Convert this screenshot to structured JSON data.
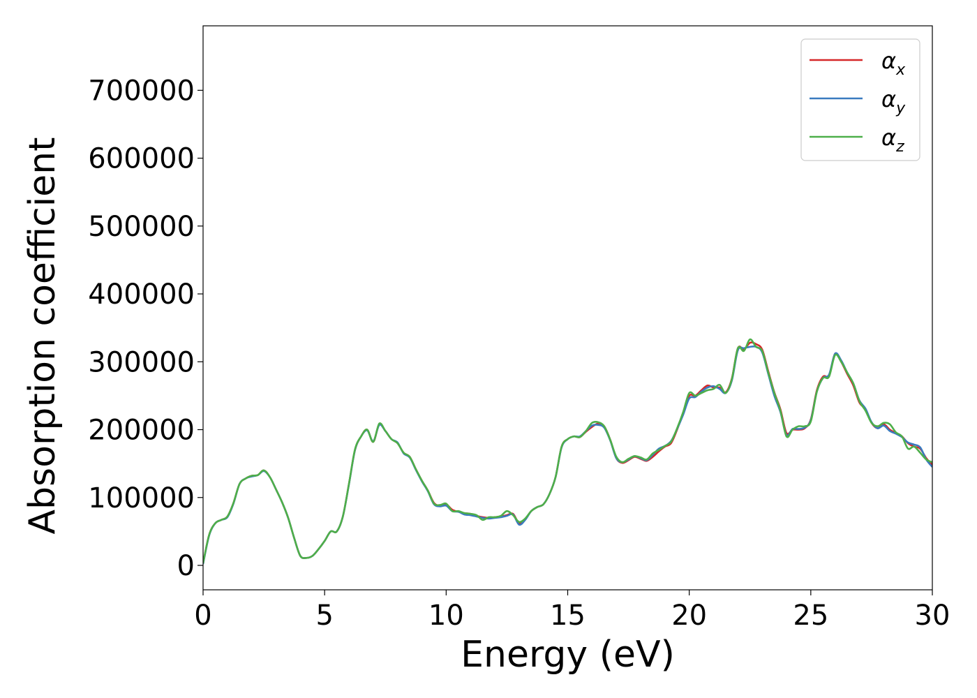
{
  "chart_data": {
    "type": "line",
    "xlabel": "Energy (eV)",
    "ylabel": "Absorption coefficient",
    "xlim": [
      0,
      30
    ],
    "ylim": [
      -36000,
      795000
    ],
    "xticks": [
      0,
      5,
      10,
      15,
      20,
      25,
      30
    ],
    "xtick_labels": [
      "0",
      "5",
      "10",
      "15",
      "20",
      "25",
      "30"
    ],
    "yticks": [
      0,
      100000,
      200000,
      300000,
      400000,
      500000,
      600000,
      700000
    ],
    "ytick_labels": [
      "0",
      "100000",
      "200000",
      "300000",
      "400000",
      "500000",
      "600000",
      "700000"
    ],
    "grid": false,
    "legend_position": "top-right",
    "x": [
      0,
      0.25,
      0.5,
      0.75,
      1,
      1.25,
      1.5,
      1.75,
      2,
      2.25,
      2.5,
      2.75,
      3,
      3.25,
      3.5,
      3.75,
      4,
      4.25,
      4.5,
      4.75,
      5,
      5.25,
      5.5,
      5.75,
      6,
      6.25,
      6.5,
      6.75,
      7,
      7.25,
      7.5,
      7.75,
      8,
      8.25,
      8.5,
      8.75,
      9,
      9.25,
      9.5,
      9.75,
      10,
      10.25,
      10.5,
      10.75,
      11,
      11.25,
      11.5,
      11.75,
      12,
      12.25,
      12.5,
      12.75,
      13,
      13.25,
      13.5,
      13.75,
      14,
      14.25,
      14.5,
      14.75,
      15,
      15.25,
      15.5,
      15.75,
      16,
      16.25,
      16.5,
      16.75,
      17,
      17.25,
      17.5,
      17.75,
      18,
      18.25,
      18.5,
      18.75,
      19,
      19.25,
      19.5,
      19.75,
      20,
      20.25,
      20.5,
      20.75,
      21,
      21.25,
      21.5,
      21.75,
      22,
      22.25,
      22.5,
      22.75,
      23,
      23.25,
      23.5,
      23.75,
      24,
      24.25,
      24.5,
      24.75,
      25,
      25.25,
      25.5,
      25.75,
      26,
      26.25,
      26.5,
      26.75,
      27,
      27.25,
      27.5,
      27.75,
      28,
      28.25,
      28.5,
      28.75,
      29,
      29.25,
      29.5,
      29.75,
      30
    ],
    "series": [
      {
        "name": "αx",
        "label_base": "α",
        "label_sub": "x",
        "color": "#d62728",
        "values": [
          3000,
          45000,
          62000,
          67000,
          72000,
          92000,
          120000,
          128000,
          132000,
          133000,
          140000,
          130000,
          112000,
          93000,
          70000,
          40000,
          14000,
          11000,
          14000,
          24000,
          36000,
          50000,
          50000,
          72000,
          120000,
          170000,
          190000,
          200000,
          182000,
          208000,
          198000,
          186000,
          180000,
          166000,
          160000,
          142000,
          125000,
          110000,
          92000,
          88000,
          90000,
          82000,
          79000,
          77000,
          76000,
          73000,
          71000,
          70000,
          71000,
          72000,
          74000,
          76000,
          62000,
          68000,
          80000,
          86000,
          90000,
          105000,
          130000,
          175000,
          186000,
          190000,
          189000,
          197000,
          204000,
          209000,
          205000,
          185000,
          158000,
          151000,
          155000,
          160000,
          157000,
          154000,
          160000,
          168000,
          175000,
          180000,
          200000,
          225000,
          250000,
          250000,
          258000,
          265000,
          262000,
          262000,
          255000,
          275000,
          320000,
          318000,
          328000,
          326000,
          318000,
          286000,
          255000,
          230000,
          195000,
          200000,
          200000,
          202000,
          215000,
          258000,
          278000,
          280000,
          312000,
          300000,
          282000,
          265000,
          240000,
          230000,
          210000,
          202000,
          208000,
          200000,
          195000,
          190000,
          180000,
          175000,
          172000,
          158000,
          148000
        ]
      },
      {
        "name": "αy",
        "label_base": "α",
        "label_sub": "y",
        "color": "#3a7bbf",
        "values": [
          2000,
          44000,
          62000,
          67000,
          71000,
          91000,
          120000,
          128000,
          131000,
          133000,
          139000,
          130000,
          112000,
          93000,
          70000,
          40000,
          14000,
          11000,
          14000,
          24000,
          36000,
          50000,
          50000,
          72000,
          119000,
          170000,
          190000,
          199000,
          183000,
          207000,
          198000,
          186000,
          181000,
          165000,
          159000,
          141000,
          124000,
          109000,
          90000,
          87000,
          88000,
          80000,
          79000,
          75000,
          74000,
          72000,
          70000,
          69000,
          70000,
          71000,
          73000,
          75000,
          60000,
          67000,
          80000,
          86000,
          90000,
          105000,
          130000,
          174000,
          186000,
          190000,
          190000,
          198000,
          206000,
          207000,
          203000,
          184000,
          158000,
          152000,
          156000,
          161000,
          158000,
          155000,
          163000,
          172000,
          176000,
          183000,
          201000,
          222000,
          246000,
          248000,
          256000,
          262000,
          264000,
          260000,
          254000,
          272000,
          317000,
          320000,
          322000,
          322000,
          314000,
          282000,
          250000,
          226000,
          192000,
          201000,
          201000,
          203000,
          214000,
          256000,
          276000,
          281000,
          312000,
          302000,
          284000,
          268000,
          243000,
          231000,
          211000,
          202000,
          206000,
          198000,
          194000,
          189000,
          181000,
          178000,
          174000,
          156000,
          145000
        ]
      },
      {
        "name": "αz",
        "label_base": "α",
        "label_sub": "z",
        "color": "#4daf4a",
        "values": [
          3000,
          45000,
          62000,
          67000,
          72000,
          92000,
          120000,
          128000,
          132000,
          133000,
          140000,
          130000,
          112000,
          93000,
          70000,
          40000,
          14000,
          11000,
          14000,
          24000,
          36000,
          50000,
          50000,
          72000,
          120000,
          171000,
          190000,
          200000,
          182000,
          209000,
          198000,
          186000,
          180000,
          166000,
          160000,
          142000,
          125000,
          110000,
          91000,
          89000,
          91000,
          80000,
          80000,
          77000,
          76000,
          74000,
          67000,
          71000,
          71000,
          73000,
          80000,
          74000,
          64000,
          69000,
          80000,
          86000,
          90000,
          105000,
          130000,
          175000,
          186000,
          190000,
          189000,
          198000,
          210000,
          211000,
          205000,
          185000,
          160000,
          152000,
          157000,
          161000,
          159000,
          156000,
          165000,
          170000,
          176000,
          182000,
          202000,
          226000,
          254000,
          250000,
          254000,
          258000,
          260000,
          266000,
          254000,
          274000,
          320000,
          316000,
          333000,
          322000,
          316000,
          284000,
          254000,
          228000,
          190000,
          200000,
          205000,
          205000,
          212000,
          256000,
          276000,
          278000,
          310000,
          300000,
          284000,
          268000,
          242000,
          228000,
          210000,
          205000,
          210000,
          208000,
          196000,
          190000,
          172000,
          175000,
          166000,
          156000,
          152000
        ]
      }
    ]
  }
}
